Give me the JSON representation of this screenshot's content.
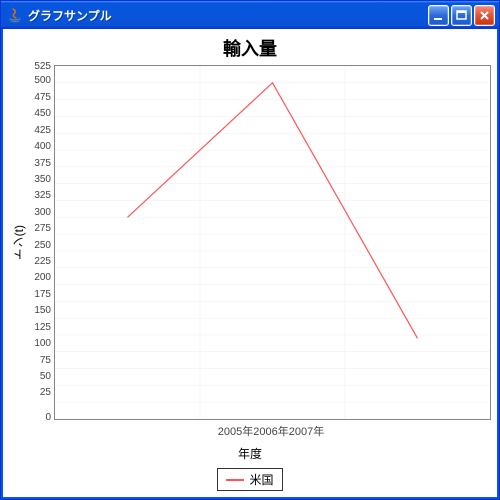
{
  "window": {
    "title": "グラフサンプル",
    "titlebar_gradient": [
      "#3f8cf3",
      "#0855dd",
      "#0831d9"
    ],
    "button_blue": [
      "#6fa8ef",
      "#2c69d8",
      "#1b5bcf"
    ],
    "button_red": [
      "#f48d7c",
      "#e4573d",
      "#c9310f"
    ],
    "border_color": "#0831d9"
  },
  "chart": {
    "type": "line",
    "title": "輸入量",
    "title_fontsize": 18,
    "xlabel": "年度",
    "ylabel": "トン(t)",
    "label_fontsize": 12,
    "tick_fontsize": 10,
    "background_color": "#ffffff",
    "plot_border_color": "#888888",
    "grid_color": "#dddddd",
    "grid_on": true,
    "ylim": [
      0,
      525
    ],
    "ytick_step": 25,
    "yticks": [
      525,
      500,
      475,
      450,
      425,
      400,
      375,
      350,
      325,
      300,
      275,
      250,
      225,
      200,
      175,
      150,
      125,
      100,
      75,
      50,
      25,
      0
    ],
    "categories": [
      "2005年",
      "2006年",
      "2007年"
    ],
    "series": [
      {
        "name": "米国",
        "color": "#ff5555",
        "line_width": 1.2,
        "values": [
          300,
          500,
          120
        ]
      }
    ],
    "legend": {
      "position": "bottom",
      "border_color": "#333333"
    }
  }
}
